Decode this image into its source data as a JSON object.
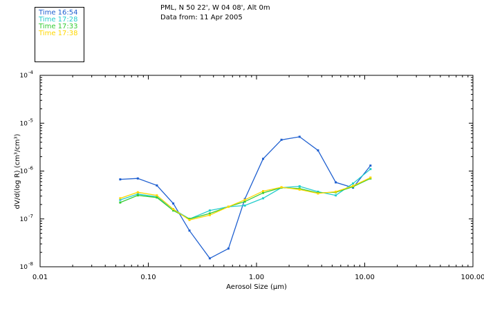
{
  "header": {
    "location": "PML, N 50 22', W 04 08', Alt 0m",
    "date": "Data from: 11 Apr 2005"
  },
  "chart_data": {
    "type": "line",
    "title": "PML, N 50 22', W 04 08', Alt 0m",
    "subtitle": "Data from: 11 Apr 2005",
    "xlabel": "Aerosol Size (µm)",
    "ylabel": "dV/d(log R) (cm³/cm³)",
    "xscale": "log",
    "yscale": "log",
    "xlim": [
      0.01,
      100
    ],
    "ylim": [
      1e-08,
      0.0001
    ],
    "x_ticks": [
      {
        "value": 0.01,
        "label": "0.01"
      },
      {
        "value": 0.1,
        "label": "0.10"
      },
      {
        "value": 1,
        "label": "1.00"
      },
      {
        "value": 10,
        "label": "10.00"
      },
      {
        "value": 100,
        "label": "100.00"
      }
    ],
    "y_ticks": [
      {
        "value": 1e-08,
        "base": "10",
        "exp": "-8"
      },
      {
        "value": 1e-07,
        "base": "10",
        "exp": "-7"
      },
      {
        "value": 1e-06,
        "base": "10",
        "exp": "-6"
      },
      {
        "value": 1e-05,
        "base": "10",
        "exp": "-5"
      },
      {
        "value": 0.0001,
        "base": "10",
        "exp": "-4"
      }
    ],
    "legend_position": "top-left",
    "x": [
      0.055,
      0.08,
      0.12,
      0.17,
      0.24,
      0.37,
      0.55,
      0.78,
      1.15,
      1.7,
      2.5,
      3.7,
      5.4,
      7.8,
      11.3
    ],
    "series": [
      {
        "name": "Time 16:54",
        "color": "#1e5fd0",
        "values": [
          6.7e-07,
          7e-07,
          5e-07,
          2.1e-07,
          5.7e-08,
          1.5e-08,
          2.4e-08,
          2.6e-07,
          1.8e-06,
          4.5e-06,
          5.2e-06,
          2.7e-06,
          5.8e-07,
          4.5e-07,
          1.3e-06
        ]
      },
      {
        "name": "Time 17:28",
        "color": "#22cccc",
        "values": [
          2.5e-07,
          3.3e-07,
          2.9e-07,
          1.6e-07,
          1e-07,
          1.5e-07,
          1.8e-07,
          1.9e-07,
          2.7e-07,
          4.5e-07,
          4.8e-07,
          3.7e-07,
          3.1e-07,
          5.5e-07,
          1.1e-06
        ]
      },
      {
        "name": "Time 17:33",
        "color": "#33cc33",
        "values": [
          2.2e-07,
          3.1e-07,
          2.8e-07,
          1.5e-07,
          1e-07,
          1.3e-07,
          1.8e-07,
          2.3e-07,
          3.5e-07,
          4.5e-07,
          4.3e-07,
          3.5e-07,
          3.6e-07,
          4.7e-07,
          7e-07
        ]
      },
      {
        "name": "Time 17:38",
        "color": "#ffd700",
        "values": [
          2.7e-07,
          3.6e-07,
          3.1e-07,
          1.6e-07,
          9.5e-08,
          1.2e-07,
          1.8e-07,
          2.5e-07,
          3.8e-07,
          4.6e-07,
          4.1e-07,
          3.4e-07,
          3.7e-07,
          4.9e-07,
          7.3e-07
        ]
      }
    ]
  }
}
